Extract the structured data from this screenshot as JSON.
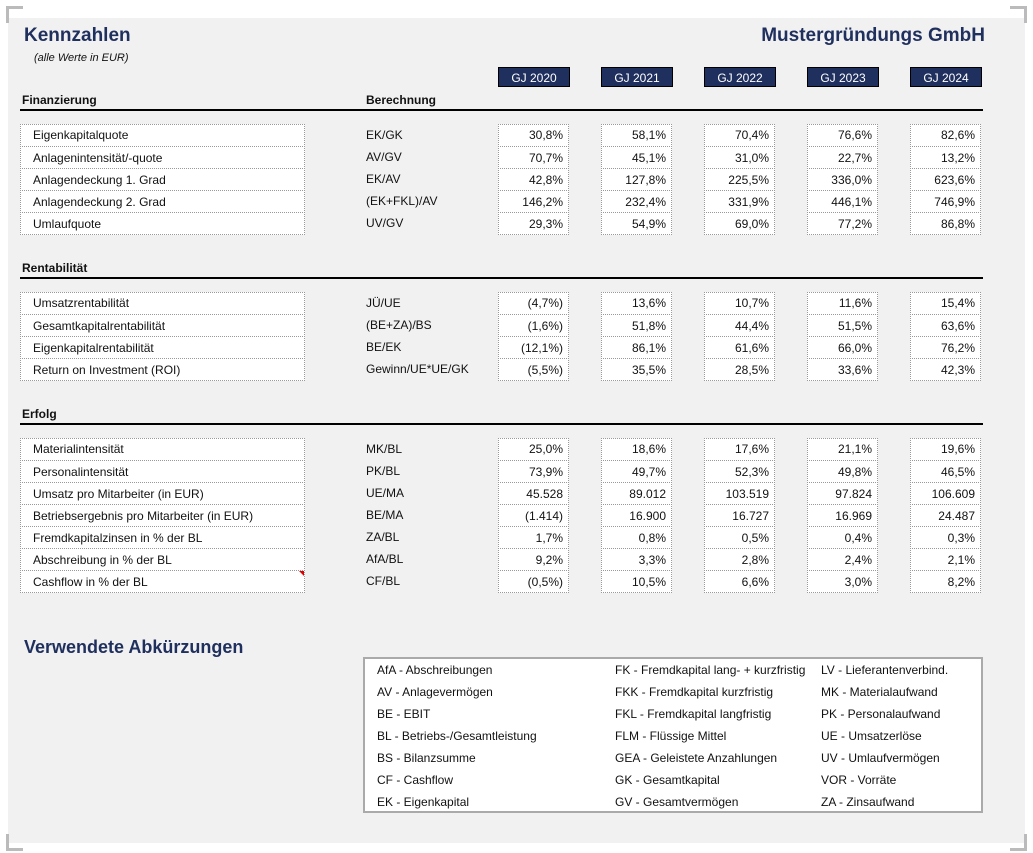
{
  "header": {
    "title": "Kennzahlen",
    "subtitle": "(alle Werte in EUR)",
    "company": "Mustergründungs GmbH",
    "calc_label": "Berechnung",
    "years": [
      "GJ 2020",
      "GJ 2021",
      "GJ 2022",
      "GJ 2023",
      "GJ 2024"
    ]
  },
  "sections": [
    {
      "title": "Finanzierung",
      "rows": [
        {
          "label": "Eigenkapitalquote",
          "calc": "EK/GK",
          "values": [
            "30,8%",
            "58,1%",
            "70,4%",
            "76,6%",
            "82,6%"
          ]
        },
        {
          "label": "Anlagenintensität/-quote",
          "calc": "AV/GV",
          "values": [
            "70,7%",
            "45,1%",
            "31,0%",
            "22,7%",
            "13,2%"
          ]
        },
        {
          "label": "Anlagendeckung 1. Grad",
          "calc": "EK/AV",
          "values": [
            "42,8%",
            "127,8%",
            "225,5%",
            "336,0%",
            "623,6%"
          ]
        },
        {
          "label": "Anlagendeckung 2. Grad",
          "calc": "(EK+FKL)/AV",
          "values": [
            "146,2%",
            "232,4%",
            "331,9%",
            "446,1%",
            "746,9%"
          ]
        },
        {
          "label": "Umlaufquote",
          "calc": "UV/GV",
          "values": [
            "29,3%",
            "54,9%",
            "69,0%",
            "77,2%",
            "86,8%"
          ]
        }
      ]
    },
    {
      "title": "Rentabilität",
      "rows": [
        {
          "label": "Umsatzrentabilität",
          "calc": "JÜ/UE",
          "values": [
            "(4,7%)",
            "13,6%",
            "10,7%",
            "11,6%",
            "15,4%"
          ]
        },
        {
          "label": "Gesamtkapitalrentabilität",
          "calc": "(BE+ZA)/BS",
          "values": [
            "(1,6%)",
            "51,8%",
            "44,4%",
            "51,5%",
            "63,6%"
          ]
        },
        {
          "label": "Eigenkapitalrentabilität",
          "calc": "BE/EK",
          "values": [
            "(12,1%)",
            "86,1%",
            "61,6%",
            "66,0%",
            "76,2%"
          ]
        },
        {
          "label": "Return on Investment (ROI)",
          "calc": "Gewinn/UE*UE/GK",
          "values": [
            "(5,5%)",
            "35,5%",
            "28,5%",
            "33,6%",
            "42,3%"
          ]
        }
      ]
    },
    {
      "title": "Erfolg",
      "rows": [
        {
          "label": "Materialintensität",
          "calc": "MK/BL",
          "values": [
            "25,0%",
            "18,6%",
            "17,6%",
            "21,1%",
            "19,6%"
          ]
        },
        {
          "label": "Personalintensität",
          "calc": "PK/BL",
          "values": [
            "73,9%",
            "49,7%",
            "52,3%",
            "49,8%",
            "46,5%"
          ]
        },
        {
          "label": "Umsatz pro Mitarbeiter (in EUR)",
          "calc": "UE/MA",
          "values": [
            "45.528",
            "89.012",
            "103.519",
            "97.824",
            "106.609"
          ]
        },
        {
          "label": "Betriebsergebnis pro Mitarbeiter (in EUR)",
          "calc": "BE/MA",
          "values": [
            "(1.414)",
            "16.900",
            "16.727",
            "16.969",
            "24.487"
          ]
        },
        {
          "label": "Fremdkapitalzinsen in % der BL",
          "calc": "ZA/BL",
          "values": [
            "1,7%",
            "0,8%",
            "0,5%",
            "0,4%",
            "0,3%"
          ]
        },
        {
          "label": "Abschreibung in % der BL",
          "calc": "AfA/BL",
          "values": [
            "9,2%",
            "3,3%",
            "2,8%",
            "2,4%",
            "2,1%"
          ]
        },
        {
          "label": "Cashflow in % der BL",
          "calc": "CF/BL",
          "values": [
            "(0,5%)",
            "10,5%",
            "6,6%",
            "3,0%",
            "8,2%"
          ]
        }
      ]
    }
  ],
  "abbreviations": {
    "title": "Verwendete Abkürzungen",
    "columns": [
      [
        "AfA - Abschreibungen",
        "AV - Anlagevermögen",
        "BE - EBIT",
        "BL - Betriebs-/Gesamtleistung",
        "BS - Bilanzsumme",
        "CF - Cashflow",
        "EK - Eigenkapital"
      ],
      [
        "FK - Fremdkapital lang- + kurzfristig",
        "FKK - Fremdkapital kurzfristig",
        "FKL - Fremdkapital langfristig",
        "FLM - Flüssige Mittel",
        "GEA - Geleistete Anzahlungen",
        "GK - Gesamtkapital",
        "GV - Gesamtvermögen"
      ],
      [
        "LV - Lieferantenverbind.",
        "MK - Materialaufwand",
        "PK - Personalaufwand",
        "UE - Umsatzerlöse",
        "UV - Umlaufvermögen",
        "VOR - Vorräte",
        "ZA - Zinsaufwand"
      ]
    ]
  }
}
